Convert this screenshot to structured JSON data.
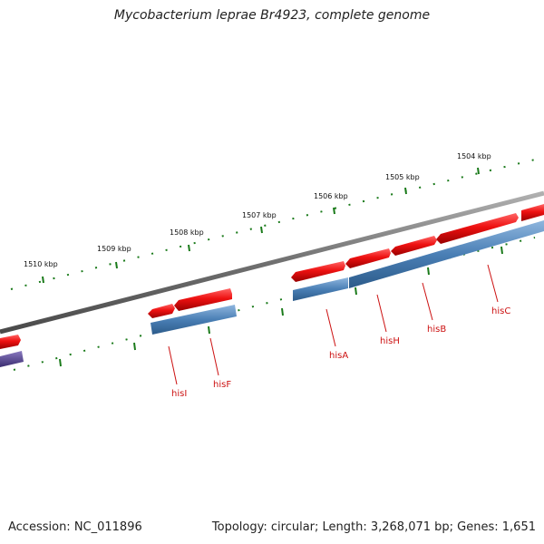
{
  "title": "Mycobacterium leprae Br4923, complete genome",
  "footer": {
    "accession": "Accession: NC_011896",
    "summary": "Topology: circular; Length: 3,268,071 bp; Genes: 1,651"
  },
  "ticks": [
    "1504 kbp",
    "1505 kbp",
    "1506 kbp",
    "1507 kbp",
    "1508 kbp",
    "1509 kbp",
    "1510 kbp"
  ],
  "genes": [
    "hisC",
    "hisB",
    "hisH",
    "hisA",
    "hisF",
    "hisI"
  ],
  "colors": {
    "forward_gene": "#ee1111",
    "cds": "#4a7fb5",
    "backbone": "#808080",
    "tick": "#1a7a1a",
    "label": "#cc1111",
    "purple_feature": "#4f3f8f"
  }
}
